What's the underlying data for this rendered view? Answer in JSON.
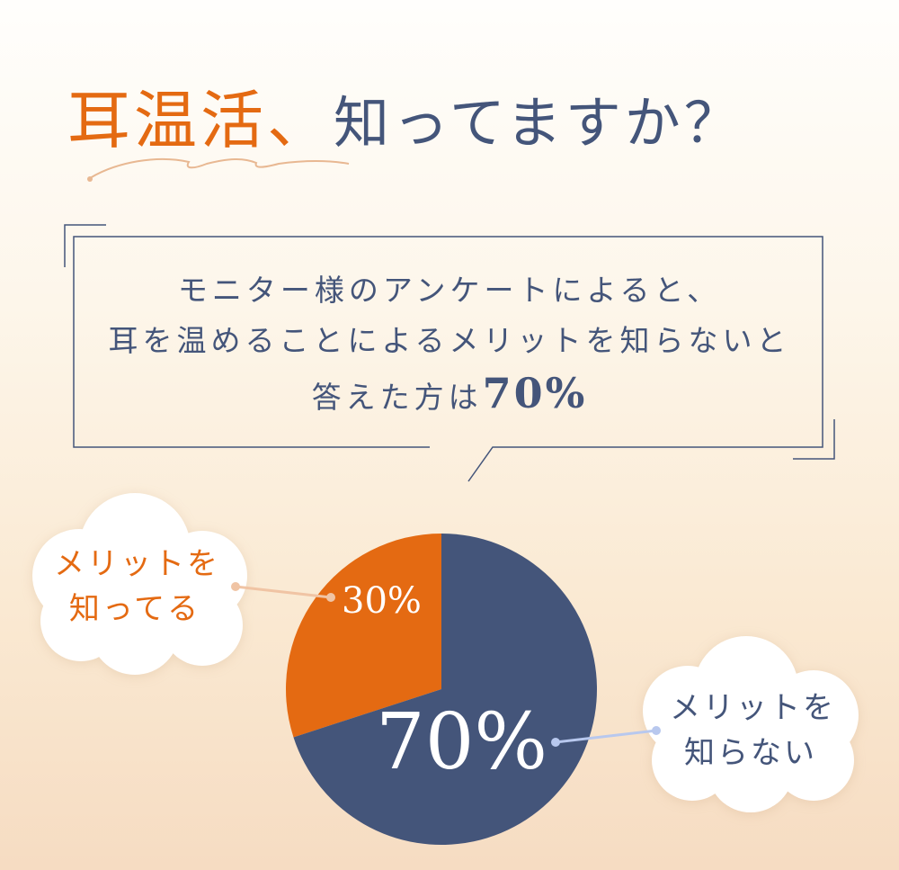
{
  "heading": {
    "highlight": "耳温活、",
    "rest": "知ってますか？"
  },
  "message": {
    "line1": "モニター様のアンケートによると、",
    "line2": "耳を温めることによるメリットを知らないと",
    "line3_prefix": "答えた方は",
    "line3_value": "70%"
  },
  "colors": {
    "orange": "#e46a12",
    "navy": "#44557a",
    "orange_line": "#f0c4a4",
    "navy_line": "#b8c8ee"
  },
  "chart_data": {
    "type": "pie",
    "categories": [
      "メリットを知ってる",
      "メリットを知らない"
    ],
    "values": [
      30,
      70
    ],
    "data_labels": [
      "30%",
      "70%"
    ],
    "colors": [
      "#e46a12",
      "#44557a"
    ],
    "legend": {
      "known": {
        "line1": "メリットを",
        "line2": "知ってる"
      },
      "unknown": {
        "line1": "メリットを",
        "line2": "知らない"
      }
    }
  }
}
